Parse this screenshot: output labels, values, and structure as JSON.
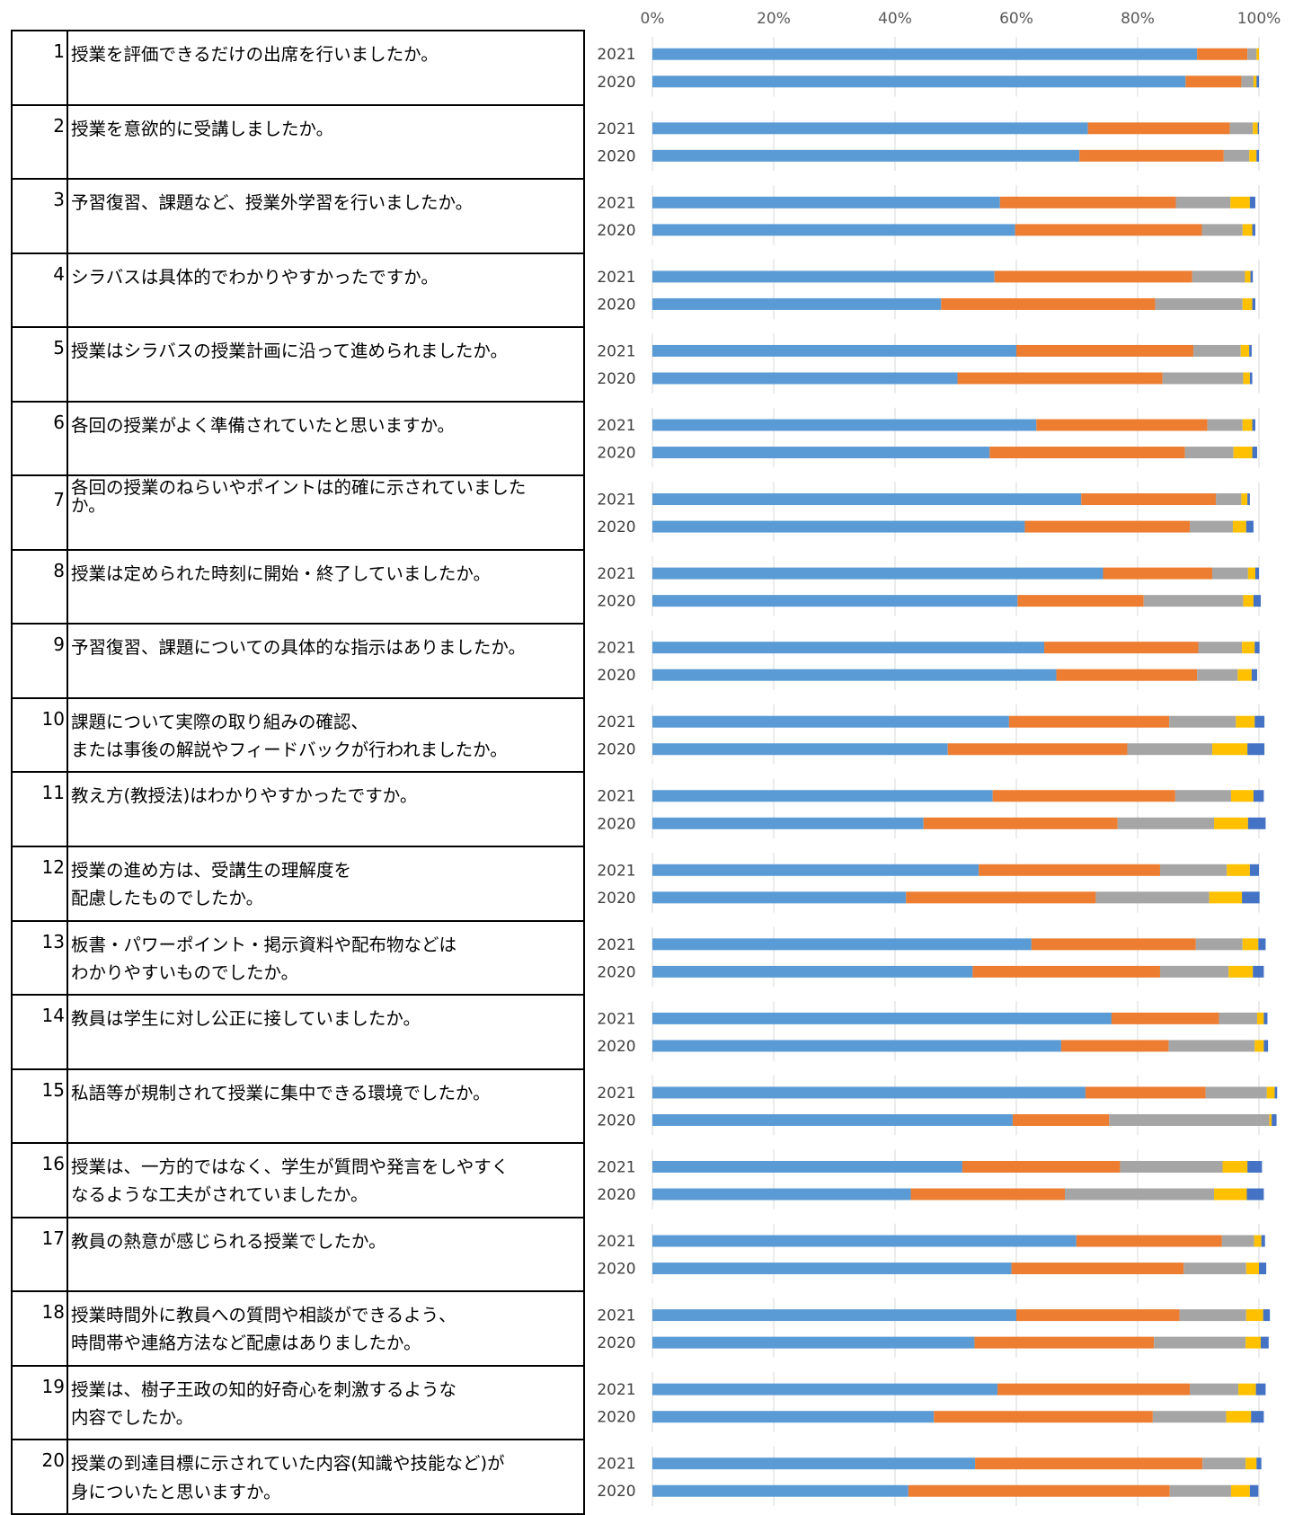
{
  "chart_data": {
    "type": "bar",
    "orientation": "horizontal",
    "stacked": "percent",
    "xlim": [
      0,
      100
    ],
    "x_ticks": [
      "0%",
      "20%",
      "40%",
      "60%",
      "80%",
      "100%"
    ],
    "colors": [
      "#5B9BD5",
      "#ED7D31",
      "#A5A5A5",
      "#FFC000",
      "#4472C4"
    ],
    "grid": true,
    "legend": "none",
    "questions": [
      {
        "no": "1",
        "lines": [
          "授業を評価できるだけの出席を行いましたか。"
        ],
        "bars": [
          {
            "year": "2021",
            "values": [
              89.8,
              8.3,
              1.5,
              0.4,
              0.0
            ]
          },
          {
            "year": "2020",
            "values": [
              87.9,
              9.2,
              2.0,
              0.5,
              0.4
            ]
          }
        ]
      },
      {
        "no": "2",
        "lines": [
          "授業を意欲的に受講しましたか。"
        ],
        "bars": [
          {
            "year": "2021",
            "values": [
              71.8,
              23.4,
              3.8,
              0.8,
              0.2
            ]
          },
          {
            "year": "2020",
            "values": [
              70.4,
              23.8,
              4.2,
              1.2,
              0.4
            ]
          }
        ]
      },
      {
        "no": "3",
        "lines": [
          "予習復習、課題など、授業外学習を行いましたか。"
        ],
        "bars": [
          {
            "year": "2021",
            "values": [
              57.3,
              29.0,
              9.0,
              3.2,
              0.9
            ]
          },
          {
            "year": "2020",
            "values": [
              59.8,
              30.8,
              6.7,
              1.6,
              0.5
            ]
          }
        ]
      },
      {
        "no": "4",
        "lines": [
          "シラバスは具体的でわかりやすかったですか。"
        ],
        "bars": [
          {
            "year": "2021",
            "values": [
              56.4,
              32.6,
              8.7,
              0.9,
              0.4
            ]
          },
          {
            "year": "2020",
            "values": [
              47.6,
              35.3,
              14.4,
              1.6,
              0.5
            ]
          }
        ]
      },
      {
        "no": "5",
        "lines": [
          "授業はシラバスの授業計画に沿って進められましたか。"
        ],
        "bars": [
          {
            "year": "2021",
            "values": [
              60.0,
              29.2,
              7.8,
              1.4,
              0.4
            ]
          },
          {
            "year": "2020",
            "values": [
              50.3,
              33.8,
              13.3,
              1.1,
              0.4
            ]
          }
        ]
      },
      {
        "no": "6",
        "lines": [
          "各回の授業がよく準備されていたと思いますか。"
        ],
        "bars": [
          {
            "year": "2021",
            "values": [
              63.3,
              28.2,
              5.8,
              1.6,
              0.5
            ]
          },
          {
            "year": "2020",
            "values": [
              55.6,
              32.2,
              8.0,
              3.1,
              0.8
            ]
          }
        ]
      },
      {
        "no": "7",
        "lines": [
          "各回の授業のねらいやポイントは的確に示されていました",
          "か。"
        ],
        "tight": true,
        "bars": [
          {
            "year": "2021",
            "values": [
              70.7,
              22.2,
              4.2,
              1.0,
              0.4
            ]
          },
          {
            "year": "2020",
            "values": [
              61.4,
              27.2,
              7.1,
              2.2,
              1.2
            ]
          }
        ]
      },
      {
        "no": "8",
        "lines": [
          "授業は定められた時刻に開始・終了していましたか。"
        ],
        "bars": [
          {
            "year": "2021",
            "values": [
              74.3,
              18.0,
              5.9,
              1.2,
              0.6
            ]
          },
          {
            "year": "2020",
            "values": [
              60.2,
              20.8,
              16.4,
              1.7,
              1.2
            ]
          }
        ]
      },
      {
        "no": "9",
        "lines": [
          "予習復習、課題についての具体的な指示はありましたか。"
        ],
        "bars": [
          {
            "year": "2021",
            "values": [
              64.6,
              25.4,
              7.2,
              2.1,
              0.8
            ]
          },
          {
            "year": "2020",
            "values": [
              66.6,
              23.2,
              6.7,
              2.3,
              0.9
            ]
          }
        ]
      },
      {
        "no": "10",
        "lines": [
          "課題について実際の取り組みの確認、",
          "または事後の解説やフィードバックが行われましたか。"
        ],
        "bars": [
          {
            "year": "2021",
            "values": [
              58.8,
              26.4,
              11.0,
              3.1,
              1.6
            ]
          },
          {
            "year": "2020",
            "values": [
              48.7,
              29.6,
              14.0,
              5.8,
              2.8
            ]
          }
        ]
      },
      {
        "no": "11",
        "lines": [
          "教え方(教授法)はわかりやすかったですか。"
        ],
        "bars": [
          {
            "year": "2021",
            "values": [
              56.1,
              30.1,
              9.2,
              3.7,
              1.7
            ]
          },
          {
            "year": "2020",
            "values": [
              44.7,
              32.0,
              15.9,
              5.6,
              2.9
            ]
          }
        ]
      },
      {
        "no": "12",
        "lines": [
          "授業の進め方は、受講生の理解度を",
          "配慮したものでしたか。"
        ],
        "bars": [
          {
            "year": "2021",
            "values": [
              53.8,
              29.9,
              11.0,
              3.8,
              1.5
            ]
          },
          {
            "year": "2020",
            "values": [
              41.8,
              31.3,
              18.7,
              5.4,
              2.9
            ]
          }
        ]
      },
      {
        "no": "13",
        "lines": [
          "板書・パワーポイント・掲示資料や配布物などは",
          "わかりやすいものでしたか。"
        ],
        "bars": [
          {
            "year": "2021",
            "values": [
              62.5,
              27.1,
              7.7,
              2.6,
              1.2
            ]
          },
          {
            "year": "2020",
            "values": [
              52.8,
              30.9,
              11.3,
              4.0,
              1.8
            ]
          }
        ]
      },
      {
        "no": "14",
        "lines": [
          "教員は学生に対し公正に接していましたか。"
        ],
        "bars": [
          {
            "year": "2021",
            "values": [
              75.7,
              17.7,
              6.3,
              1.1,
              0.6
            ]
          },
          {
            "year": "2020",
            "values": [
              67.4,
              17.7,
              14.2,
              1.5,
              0.7
            ]
          }
        ]
      },
      {
        "no": "15",
        "lines": [
          "私語等が規制されて授業に集中できる環境でしたか。"
        ],
        "bars": [
          {
            "year": "2021",
            "values": [
              71.4,
              19.8,
              10.1,
              1.3,
              0.4
            ]
          },
          {
            "year": "2020",
            "values": [
              59.4,
              15.9,
              26.4,
              0.4,
              0.8
            ]
          }
        ]
      },
      {
        "no": "16",
        "lines": [
          "授業は、一方的ではなく、学生が質問や発言をしやすく",
          "なるような工夫がされていましたか。"
        ],
        "bars": [
          {
            "year": "2021",
            "values": [
              51.1,
              26.0,
              16.9,
              4.1,
              2.4
            ]
          },
          {
            "year": "2020",
            "values": [
              42.6,
              25.4,
              24.6,
              5.4,
              2.8
            ]
          }
        ]
      },
      {
        "no": "17",
        "lines": [
          "教員の熱意が感じられる授業でしたか。"
        ],
        "bars": [
          {
            "year": "2021",
            "values": [
              69.9,
              24.0,
              5.3,
              1.2,
              0.6
            ]
          },
          {
            "year": "2020",
            "values": [
              59.2,
              28.4,
              10.3,
              2.1,
              1.2
            ]
          }
        ]
      },
      {
        "no": "18",
        "lines": [
          "授業時間外に教員への質問や相談ができるよう、",
          "時間帯や連絡方法など配慮はありましたか。"
        ],
        "bars": [
          {
            "year": "2021",
            "values": [
              60.0,
              26.9,
              11.0,
              2.8,
              1.1
            ]
          },
          {
            "year": "2020",
            "values": [
              53.1,
              29.6,
              15.1,
              2.5,
              1.3
            ]
          }
        ]
      },
      {
        "no": "19",
        "lines": [
          "授業は、樹子王政の知的好奇心を刺激するような",
          "内容でしたか。"
        ],
        "bars": [
          {
            "year": "2021",
            "values": [
              56.9,
              31.7,
              8.0,
              2.9,
              1.6
            ]
          },
          {
            "year": "2020",
            "values": [
              46.4,
              36.1,
              12.1,
              4.1,
              2.1
            ]
          }
        ]
      },
      {
        "no": "20",
        "lines": [
          "授業の到達目標に示されていた内容(知識や技能など)が",
          "身についたと思いますか。"
        ],
        "bars": [
          {
            "year": "2021",
            "values": [
              53.2,
              37.5,
              7.1,
              1.8,
              0.8
            ]
          },
          {
            "year": "2020",
            "values": [
              42.2,
              43.1,
              10.1,
              3.1,
              1.4
            ]
          }
        ]
      }
    ]
  }
}
